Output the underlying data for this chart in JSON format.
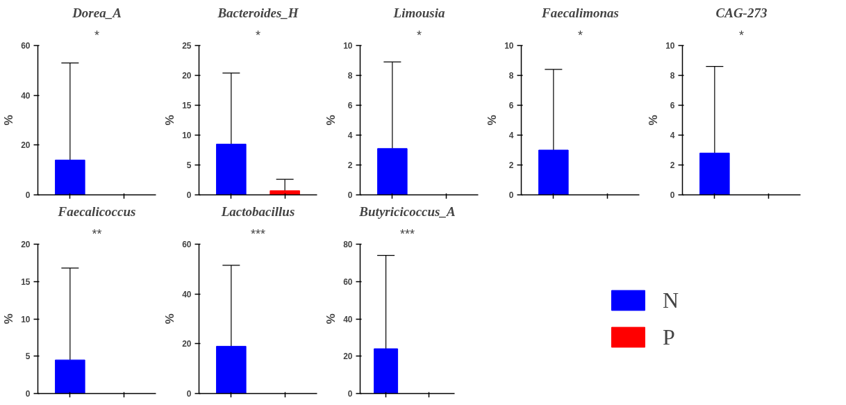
{
  "chart_data": [
    {
      "type": "bar",
      "title": "Dorea_A",
      "ylabel": "%",
      "categories": [
        null,
        null
      ],
      "ylim": [
        0,
        60
      ],
      "yticks": [
        0,
        20,
        40,
        60
      ],
      "grid": false,
      "annotations": [
        "*"
      ],
      "series": [
        {
          "color": "#0000ff",
          "values": [
            14,
            null
          ],
          "errors": [
            [
              14,
              53
            ],
            null
          ]
        },
        {
          "color": "#ff0000",
          "values": [
            null,
            0
          ]
        }
      ]
    },
    {
      "type": "bar",
      "title": "Bacteroides_H",
      "ylabel": "%",
      "categories": [
        null,
        null
      ],
      "ylim": [
        0,
        25
      ],
      "yticks": [
        0,
        5,
        10,
        15,
        20,
        25
      ],
      "grid": false,
      "annotations": [
        "*"
      ],
      "series": [
        {
          "color": "#0000ff",
          "values": [
            8.5,
            null
          ],
          "errors": [
            [
              8.5,
              20.4
            ],
            null
          ]
        },
        {
          "color": "#ff0000",
          "values": [
            null,
            0.7
          ],
          "errors": [
            null,
            [
              0.7,
              2.6
            ]
          ]
        }
      ]
    },
    {
      "type": "bar",
      "title": "Limousia",
      "ylabel": "%",
      "categories": [
        null,
        null
      ],
      "ylim": [
        0,
        10
      ],
      "yticks": [
        0,
        2,
        4,
        6,
        8,
        10
      ],
      "grid": false,
      "annotations": [
        "*"
      ],
      "series": [
        {
          "color": "#0000ff",
          "values": [
            3.1,
            null
          ],
          "errors": [
            [
              3.1,
              8.9
            ],
            null
          ]
        },
        {
          "color": "#ff0000",
          "values": [
            null,
            0
          ]
        }
      ]
    },
    {
      "type": "bar",
      "title": "Faecalimonas",
      "ylabel": "%",
      "categories": [
        null,
        null
      ],
      "ylim": [
        0,
        10
      ],
      "yticks": [
        0,
        2,
        4,
        6,
        8,
        10
      ],
      "grid": false,
      "annotations": [
        "*"
      ],
      "series": [
        {
          "color": "#0000ff",
          "values": [
            3.0,
            null
          ],
          "errors": [
            [
              3.0,
              8.4
            ],
            null
          ]
        },
        {
          "color": "#ff0000",
          "values": [
            null,
            0
          ]
        }
      ]
    },
    {
      "type": "bar",
      "title": "CAG-273",
      "ylabel": "%",
      "categories": [
        null,
        null
      ],
      "ylim": [
        0,
        10
      ],
      "yticks": [
        0,
        2,
        4,
        6,
        8,
        10
      ],
      "grid": false,
      "annotations": [
        "*"
      ],
      "series": [
        {
          "color": "#0000ff",
          "values": [
            2.8,
            null
          ],
          "errors": [
            [
              2.8,
              8.6
            ],
            null
          ]
        },
        {
          "color": "#ff0000",
          "values": [
            null,
            0
          ]
        }
      ]
    },
    {
      "type": "bar",
      "title": "Faecalicoccus",
      "ylabel": "%",
      "categories": [
        null,
        null
      ],
      "ylim": [
        0,
        20
      ],
      "yticks": [
        0,
        5,
        10,
        15,
        20
      ],
      "grid": false,
      "annotations": [
        "**"
      ],
      "series": [
        {
          "color": "#0000ff",
          "values": [
            4.5,
            null
          ],
          "errors": [
            [
              4.5,
              16.8
            ],
            null
          ]
        },
        {
          "color": "#ff0000",
          "values": [
            null,
            0
          ]
        }
      ]
    },
    {
      "type": "bar",
      "title": "Lactobacillus",
      "ylabel": "%",
      "categories": [
        null,
        null
      ],
      "ylim": [
        0,
        60
      ],
      "yticks": [
        0,
        20,
        40,
        60
      ],
      "grid": false,
      "annotations": [
        "***"
      ],
      "series": [
        {
          "color": "#0000ff",
          "values": [
            19,
            null
          ],
          "errors": [
            [
              19,
              51.5
            ],
            null
          ]
        },
        {
          "color": "#ff0000",
          "values": [
            null,
            0
          ]
        }
      ]
    },
    {
      "type": "bar",
      "title": "Butyricicoccus_A",
      "ylabel": "%",
      "categories": [
        null,
        null
      ],
      "ylim": [
        0,
        80
      ],
      "yticks": [
        0,
        20,
        40,
        60,
        80
      ],
      "grid": false,
      "annotations": [
        "***"
      ],
      "legend": "right",
      "series": [
        {
          "name": "N",
          "color": "#0000ff",
          "values": [
            24,
            null
          ],
          "errors": [
            [
              24,
              74
            ],
            null
          ]
        },
        {
          "name": "P",
          "color": "#ff0000",
          "values": [
            null,
            0
          ]
        }
      ]
    }
  ]
}
